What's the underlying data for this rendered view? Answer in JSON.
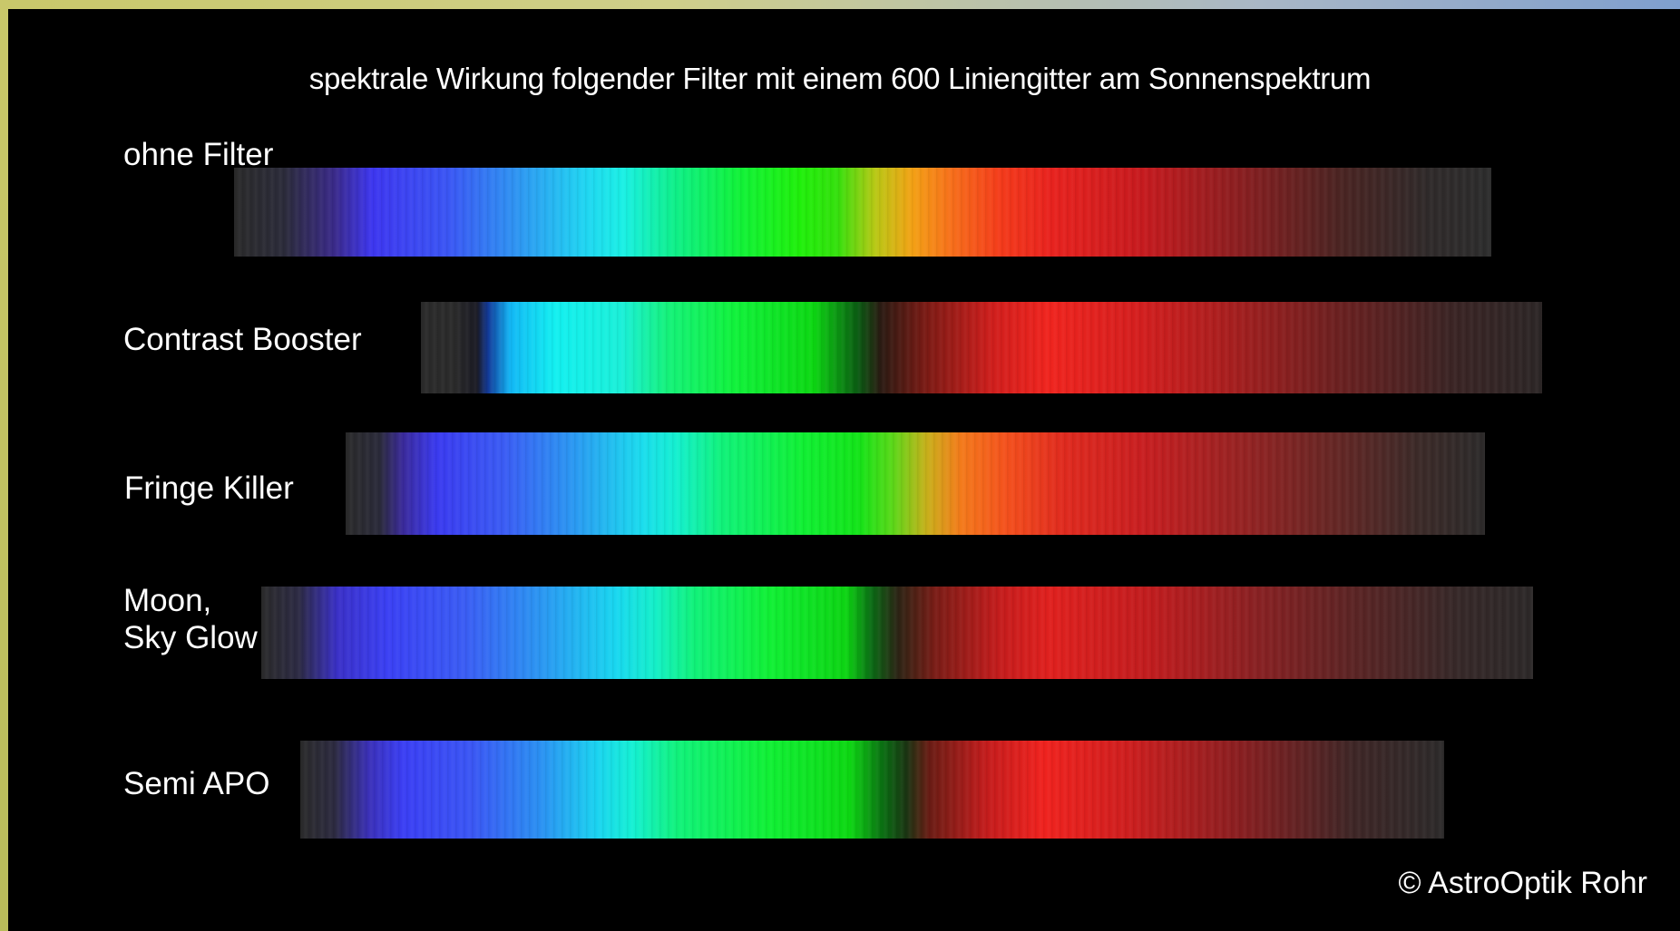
{
  "title": "spektrale Wirkung folgender Filter mit einem 600 Liniengitter am Sonnenspektrum",
  "spectra": [
    {
      "label": "ohne Filter"
    },
    {
      "label": "Contrast Booster"
    },
    {
      "label": "Fringe Killer"
    },
    {
      "label_line1": "Moon,",
      "label_line2": "Sky Glow"
    },
    {
      "label": "Semi APO"
    }
  ],
  "copyright": "© AstroOptik Rohr"
}
